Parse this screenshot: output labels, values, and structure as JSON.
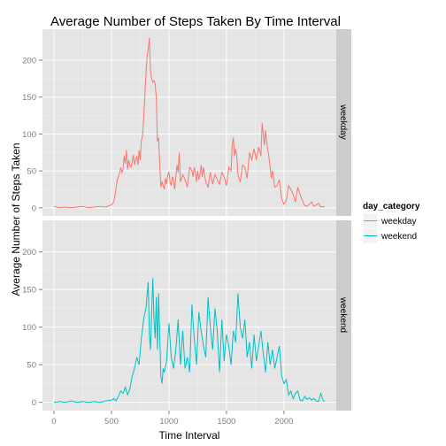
{
  "chart_data": {
    "type": "line",
    "title": "Average Number of Steps Taken By Time Interval",
    "xlabel": "Time Interval",
    "ylabel": "Average Number of Steps Taken",
    "xlim": [
      -100,
      2455
    ],
    "ylim": [
      -11,
      242
    ],
    "x_ticks": [
      0,
      500,
      1000,
      1500,
      2000
    ],
    "y_ticks": [
      0,
      50,
      100,
      150,
      200
    ],
    "grid": true,
    "facet_by": "day_category",
    "legend": {
      "title": "day_category",
      "position": "right",
      "entries": [
        "weekday",
        "weekend"
      ]
    },
    "colors": {
      "weekday": "#F8766D",
      "weekend": "#00BFC4",
      "panel_bg": "#E5E5E5",
      "strip_bg": "#CCCCCC"
    },
    "series": [
      {
        "name": "weekday",
        "x": [
          0,
          25,
          50,
          100,
          150,
          200,
          250,
          300,
          350,
          400,
          450,
          500,
          520,
          535,
          550,
          560,
          570,
          580,
          590,
          600,
          610,
          620,
          630,
          640,
          650,
          660,
          670,
          680,
          690,
          700,
          710,
          720,
          730,
          740,
          750,
          760,
          770,
          780,
          790,
          800,
          810,
          820,
          830,
          835,
          840,
          850,
          860,
          870,
          880,
          890,
          900,
          910,
          920,
          930,
          940,
          950,
          960,
          970,
          980,
          990,
          1000,
          1010,
          1020,
          1030,
          1040,
          1050,
          1060,
          1070,
          1080,
          1090,
          1100,
          1120,
          1140,
          1160,
          1180,
          1200,
          1210,
          1220,
          1230,
          1240,
          1250,
          1260,
          1270,
          1280,
          1290,
          1300,
          1320,
          1340,
          1360,
          1380,
          1400,
          1420,
          1440,
          1460,
          1480,
          1500,
          1520,
          1540,
          1550,
          1560,
          1570,
          1580,
          1590,
          1600,
          1620,
          1640,
          1660,
          1680,
          1700,
          1720,
          1740,
          1760,
          1780,
          1800,
          1810,
          1820,
          1830,
          1840,
          1850,
          1860,
          1870,
          1880,
          1890,
          1900,
          1920,
          1940,
          1960,
          1980,
          2000,
          2020,
          2040,
          2060,
          2080,
          2100,
          2120,
          2140,
          2160,
          2180,
          2200,
          2220,
          2240,
          2260,
          2280,
          2300,
          2320,
          2340,
          2355
        ],
        "values": [
          2,
          1,
          0,
          1,
          0,
          1,
          2,
          0,
          1,
          2,
          1,
          4,
          8,
          20,
          38,
          42,
          47,
          55,
          48,
          52,
          70,
          60,
          78,
          52,
          65,
          58,
          55,
          62,
          72,
          58,
          65,
          70,
          58,
          78,
          65,
          92,
          96,
          120,
          150,
          180,
          205,
          215,
          230,
          205,
          185,
          175,
          170,
          172,
          168,
          150,
          90,
          95,
          58,
          28,
          35,
          30,
          25,
          40,
          32,
          45,
          48,
          35,
          30,
          42,
          38,
          25,
          42,
          58,
          48,
          75,
          35,
          45,
          38,
          28,
          55,
          50,
          42,
          55,
          48,
          35,
          50,
          38,
          45,
          58,
          42,
          55,
          35,
          28,
          48,
          32,
          45,
          38,
          32,
          48,
          42,
          30,
          55,
          50,
          85,
          95,
          70,
          80,
          70,
          45,
          35,
          58,
          55,
          40,
          75,
          65,
          80,
          65,
          82,
          70,
          115,
          100,
          85,
          105,
          90,
          78,
          68,
          55,
          40,
          50,
          28,
          30,
          38,
          12,
          5,
          10,
          30,
          25,
          18,
          8,
          28,
          18,
          10,
          3,
          2,
          5,
          8,
          2,
          4,
          6,
          1,
          2,
          1
        ]
      },
      {
        "name": "weekend",
        "x": [
          0,
          50,
          100,
          150,
          200,
          250,
          300,
          350,
          400,
          450,
          500,
          520,
          540,
          560,
          580,
          600,
          620,
          640,
          660,
          680,
          700,
          720,
          740,
          760,
          780,
          800,
          820,
          830,
          840,
          850,
          860,
          870,
          880,
          890,
          900,
          910,
          920,
          930,
          940,
          950,
          960,
          980,
          1000,
          1020,
          1040,
          1060,
          1080,
          1100,
          1120,
          1140,
          1160,
          1180,
          1200,
          1220,
          1240,
          1260,
          1280,
          1300,
          1320,
          1340,
          1360,
          1380,
          1400,
          1420,
          1440,
          1460,
          1480,
          1500,
          1520,
          1540,
          1560,
          1580,
          1600,
          1620,
          1640,
          1660,
          1680,
          1700,
          1720,
          1740,
          1760,
          1780,
          1800,
          1820,
          1840,
          1860,
          1880,
          1900,
          1920,
          1940,
          1960,
          1980,
          2000,
          2020,
          2040,
          2060,
          2080,
          2100,
          2120,
          2140,
          2160,
          2180,
          2200,
          2220,
          2240,
          2260,
          2280,
          2300,
          2320,
          2340,
          2355
        ],
        "values": [
          0,
          1,
          0,
          2,
          0,
          1,
          0,
          1,
          0,
          2,
          3,
          5,
          2,
          8,
          15,
          12,
          20,
          10,
          18,
          35,
          45,
          60,
          50,
          85,
          110,
          125,
          160,
          90,
          70,
          120,
          165,
          110,
          85,
          140,
          70,
          145,
          90,
          35,
          25,
          45,
          40,
          55,
          105,
          60,
          45,
          70,
          110,
          50,
          95,
          45,
          60,
          40,
          130,
          85,
          50,
          120,
          95,
          75,
          60,
          140,
          100,
          70,
          125,
          95,
          40,
          110,
          55,
          90,
          75,
          50,
          95,
          80,
          145,
          100,
          85,
          110,
          60,
          80,
          45,
          90,
          55,
          75,
          95,
          65,
          40,
          80,
          50,
          70,
          45,
          60,
          75,
          35,
          25,
          30,
          10,
          15,
          5,
          12,
          15,
          3,
          2,
          8,
          4,
          6,
          3,
          5,
          2,
          1,
          12,
          3,
          1
        ]
      }
    ],
    "facet_labels": [
      "weekday",
      "weekend"
    ]
  }
}
